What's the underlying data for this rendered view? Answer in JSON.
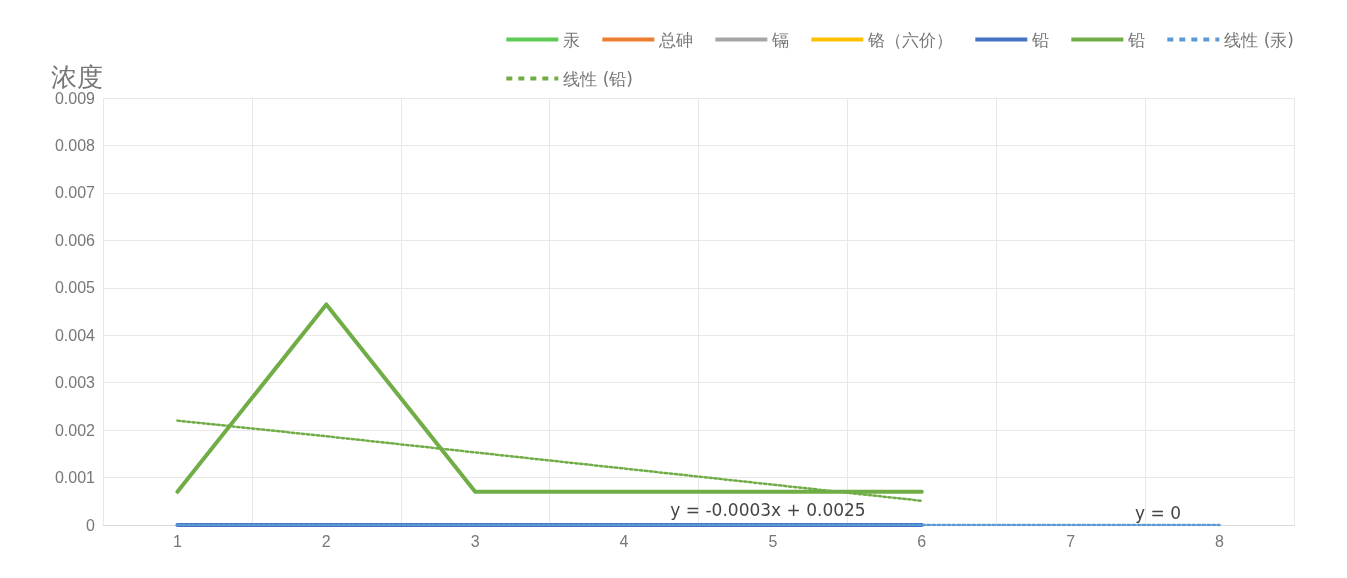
{
  "chart_data": {
    "type": "line",
    "ylabel": "浓度",
    "categories": [
      "1",
      "2",
      "3",
      "4",
      "5",
      "6",
      "7",
      "8"
    ],
    "series": [
      {
        "name": "汞",
        "color": "#5ecb55",
        "values": [
          null,
          null,
          null,
          null,
          null,
          null,
          null,
          null
        ]
      },
      {
        "name": "总砷",
        "color": "#ed7d31",
        "values": [
          null,
          null,
          null,
          null,
          null,
          null,
          null,
          null
        ]
      },
      {
        "name": "镉",
        "color": "#a5a5a5",
        "values": [
          null,
          null,
          null,
          null,
          null,
          null,
          null,
          null
        ]
      },
      {
        "name": "铬（六价）",
        "color": "#ffc000",
        "values": [
          null,
          null,
          null,
          null,
          null,
          null,
          null,
          null
        ]
      },
      {
        "name": "铅",
        "color": "#4472c4",
        "values": [
          0,
          0,
          0,
          0,
          0,
          0,
          null,
          null
        ]
      },
      {
        "name": "铅",
        "color": "#70ad47",
        "values": [
          0.0007,
          0.00465,
          0.0007,
          0.0007,
          0.0007,
          0.0007,
          null,
          null
        ]
      },
      {
        "name": "线性 (汞)",
        "color": "#5b9bd5",
        "line_style": "dotted",
        "values": [
          0,
          0,
          0,
          0,
          0,
          0,
          0,
          0
        ]
      },
      {
        "name": "线性 (铅)",
        "color": "#70ad47",
        "line_style": "dotted",
        "values": [
          0.0022,
          0.00187,
          0.00153,
          0.00119,
          0.00085,
          0.00051,
          null,
          null
        ]
      }
    ],
    "ylim": [
      0,
      0.009
    ],
    "yticks": [
      0,
      0.001,
      0.002,
      0.003,
      0.004,
      0.005,
      0.006,
      0.007,
      0.008,
      0.009
    ],
    "grid": true,
    "legend": "top right",
    "marker": "none",
    "line_style": "solid",
    "annotations": [
      "y = -0.0003x + 0.0025",
      "y = 0"
    ]
  }
}
